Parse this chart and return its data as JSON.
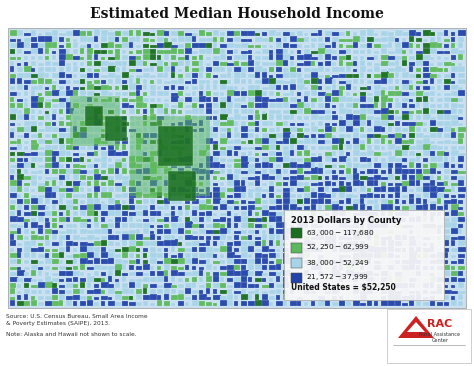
{
  "title": "Estimated Median Household Income",
  "legend_title": "2013 Dollars by County",
  "legend_items": [
    {
      "label": "$63,000 - $117,680",
      "color": "#1a6e20"
    },
    {
      "label": "$52,250 - $62,999",
      "color": "#5cb85c"
    },
    {
      "label": "$38,000 - $52,249",
      "color": "#a8d4e8"
    },
    {
      "label": "$21,572 - $37,999",
      "color": "#2244aa"
    }
  ],
  "us_avg_label": "United States = $52,250",
  "source_line1": "Source: U.S. Census Bureau, Small Area Income",
  "source_line2": "& Poverty Estimates (SAIPE), 2013.",
  "note_text": "Note: Alaska and Hawaii not shown to scale.",
  "bg_color": "#ffffff",
  "ocean_color": "#c8dff0",
  "map_border_color": "#999999",
  "title_fontsize": 10,
  "legend_fontsize": 6.5,
  "rac_text_color": "#cc2222",
  "rac_bg": "#ffffff"
}
